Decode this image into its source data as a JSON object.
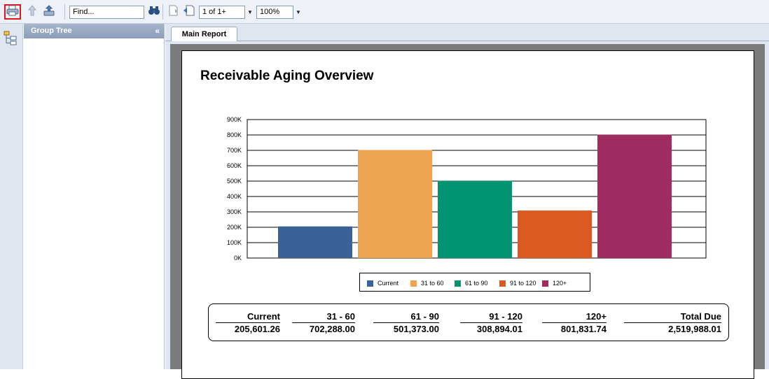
{
  "toolbar": {
    "find_placeholder": "Find...",
    "page_indicator": "1 of 1+",
    "zoom": "100%"
  },
  "group_tree": {
    "title": "Group Tree",
    "collapse": "«"
  },
  "tabs": [
    {
      "label": "Main Report"
    }
  ],
  "report": {
    "title": "Receivable Aging Overview",
    "summary": [
      {
        "header": "Current",
        "value": "205,601.26"
      },
      {
        "header": "31 - 60",
        "value": "702,288.00"
      },
      {
        "header": "61 - 90",
        "value": "501,373.00"
      },
      {
        "header": "91 - 120",
        "value": "308,894.01"
      },
      {
        "header": "120+",
        "value": "801,831.74"
      },
      {
        "header": "Total Due",
        "value": "2,519,988.01"
      }
    ]
  },
  "chart_data": {
    "type": "bar",
    "categories": [
      "Current",
      "31 to 60",
      "61 to 90",
      "91 to 120",
      "120+"
    ],
    "values": [
      205601.26,
      702288.0,
      501373.0,
      308894.01,
      801831.74
    ],
    "colors": [
      "#3b6296",
      "#eea451",
      "#009473",
      "#dd5922",
      "#a02d62"
    ],
    "ylim": [
      0,
      900000
    ],
    "yticks": [
      "0K",
      "100K",
      "200K",
      "300K",
      "400K",
      "500K",
      "600K",
      "700K",
      "800K",
      "900K"
    ],
    "grid": true,
    "legend": "bottom"
  }
}
